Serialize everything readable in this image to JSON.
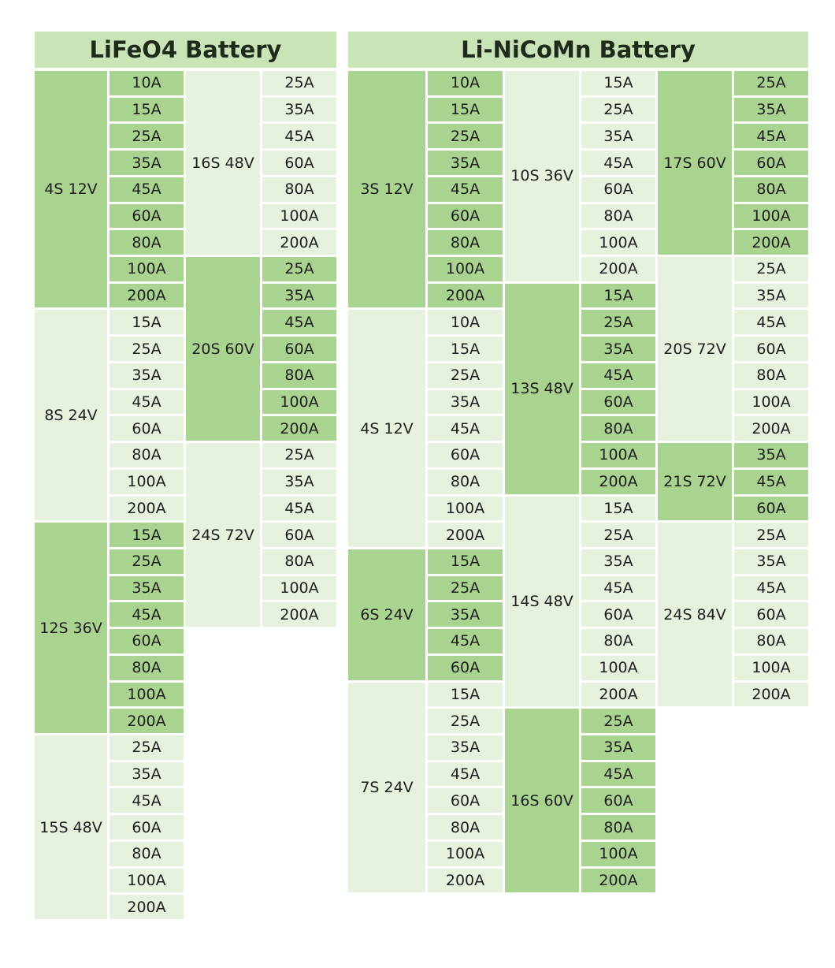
{
  "panels": [
    {
      "title": "LiFeO4 Battery",
      "columns": [
        [
          {
            "label": "4S 12V",
            "color": "#a8d48f",
            "amps": [
              "10A",
              "15A",
              "25A",
              "35A",
              "45A",
              "60A",
              "80A",
              "100A",
              "200A"
            ]
          },
          {
            "label": "8S 24V",
            "color": "#e6f2dd",
            "amps": [
              "15A",
              "25A",
              "35A",
              "45A",
              "60A",
              "80A",
              "100A",
              "200A"
            ]
          },
          {
            "label": "12S 36V",
            "color": "#a8d48f",
            "amps": [
              "15A",
              "25A",
              "35A",
              "45A",
              "60A",
              "80A",
              "100A",
              "200A"
            ]
          },
          {
            "label": "15S 48V",
            "color": "#e6f2dd",
            "amps": [
              "25A",
              "35A",
              "45A",
              "60A",
              "80A",
              "100A",
              "200A"
            ]
          }
        ],
        [
          {
            "label": "16S 48V",
            "color": "#e6f2dd",
            "amps": [
              "25A",
              "35A",
              "45A",
              "60A",
              "80A",
              "100A",
              "200A"
            ]
          },
          {
            "label": "20S 60V",
            "color": "#a8d48f",
            "amps": [
              "25A",
              "35A",
              "45A",
              "60A",
              "80A",
              "100A",
              "200A"
            ]
          },
          {
            "label": "24S 72V",
            "color": "#e6f2dd",
            "amps": [
              "25A",
              "35A",
              "45A",
              "60A",
              "80A",
              "100A",
              "200A"
            ]
          }
        ]
      ]
    },
    {
      "title": "Li-NiCoMn Battery",
      "columns": [
        [
          {
            "label": "3S 12V",
            "color": "#a8d48f",
            "amps": [
              "10A",
              "15A",
              "25A",
              "35A",
              "45A",
              "60A",
              "80A",
              "100A",
              "200A"
            ]
          },
          {
            "label": "4S 12V",
            "color": "#e6f2dd",
            "amps": [
              "10A",
              "15A",
              "25A",
              "35A",
              "45A",
              "60A",
              "80A",
              "100A",
              "200A"
            ]
          },
          {
            "label": "6S 24V",
            "color": "#a8d48f",
            "amps": [
              "15A",
              "25A",
              "35A",
              "45A",
              "60A"
            ]
          },
          {
            "label": "7S 24V",
            "color": "#e6f2dd",
            "amps": [
              "15A",
              "25A",
              "35A",
              "45A",
              "60A",
              "80A",
              "100A",
              "200A"
            ]
          }
        ],
        [
          {
            "label": "10S 36V",
            "color": "#e6f2dd",
            "amps": [
              "15A",
              "25A",
              "35A",
              "45A",
              "60A",
              "80A",
              "100A",
              "200A"
            ]
          },
          {
            "label": "13S 48V",
            "color": "#a8d48f",
            "amps": [
              "15A",
              "25A",
              "35A",
              "45A",
              "60A",
              "80A",
              "100A",
              "200A"
            ]
          },
          {
            "label": "14S 48V",
            "color": "#e6f2dd",
            "amps": [
              "15A",
              "25A",
              "35A",
              "45A",
              "60A",
              "80A",
              "100A",
              "200A"
            ]
          },
          {
            "label": "16S 60V",
            "color": "#a8d48f",
            "amps": [
              "25A",
              "35A",
              "45A",
              "60A",
              "80A",
              "100A",
              "200A"
            ]
          }
        ],
        [
          {
            "label": "17S 60V",
            "color": "#a8d48f",
            "amps": [
              "25A",
              "35A",
              "45A",
              "60A",
              "80A",
              "100A",
              "200A"
            ]
          },
          {
            "label": "20S 72V",
            "color": "#e6f2dd",
            "amps": [
              "25A",
              "35A",
              "45A",
              "60A",
              "80A",
              "100A",
              "200A"
            ]
          },
          {
            "label": "21S 72V",
            "color": "#a8d48f",
            "amps": [
              "35A",
              "45A",
              "60A"
            ]
          },
          {
            "label": "24S 84V",
            "color": "#e6f2dd",
            "amps": [
              "25A",
              "35A",
              "45A",
              "60A",
              "80A",
              "100A",
              "200A"
            ]
          }
        ]
      ]
    }
  ]
}
